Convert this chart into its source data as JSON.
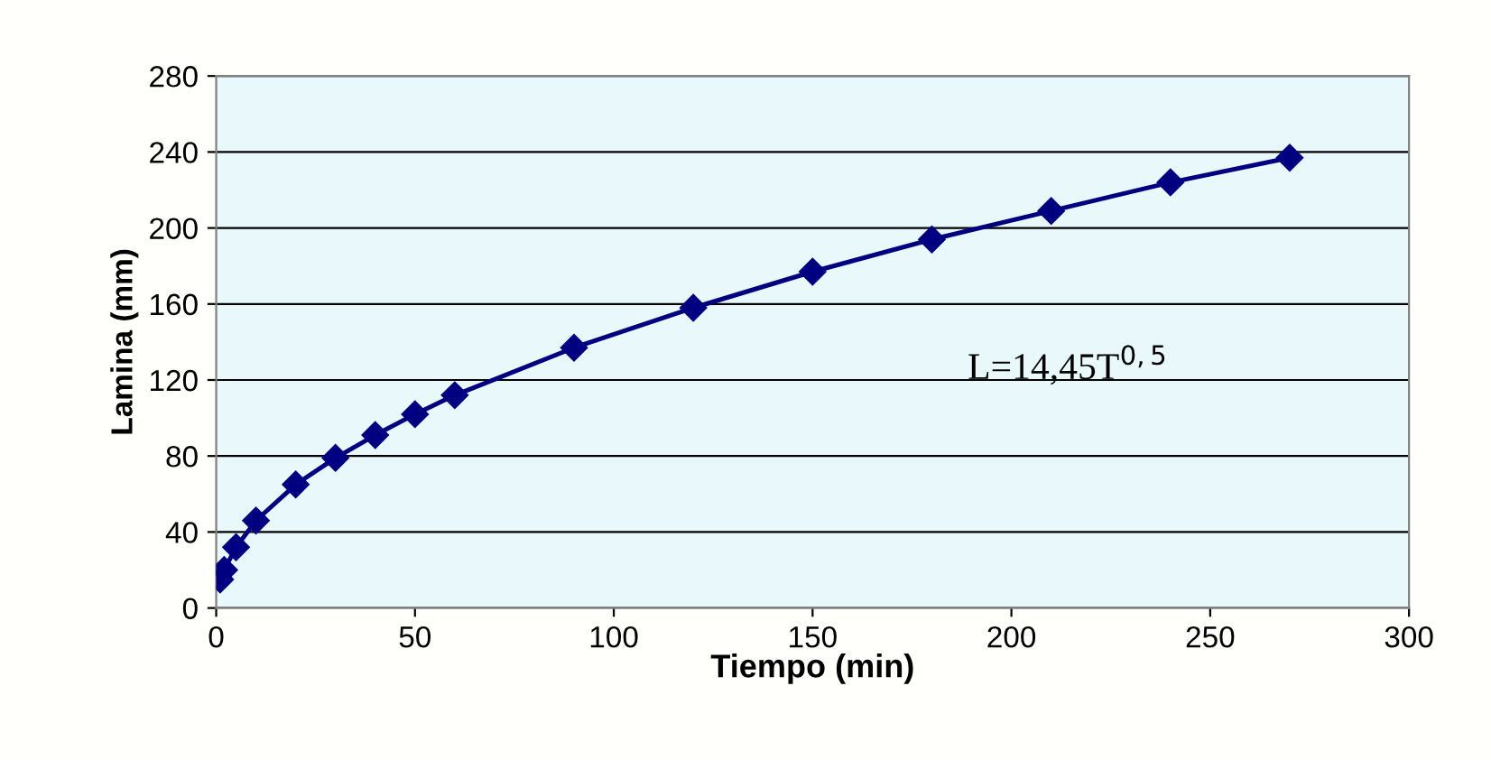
{
  "chart_data": {
    "type": "line",
    "xlabel": "Tiempo (min)",
    "ylabel": "Lamina (mm)",
    "x": [
      1,
      2,
      5,
      10,
      20,
      30,
      40,
      50,
      60,
      90,
      120,
      150,
      180,
      210,
      240,
      270
    ],
    "series": [
      {
        "color": "#000080",
        "values": [
          15,
          20,
          32,
          46,
          65,
          79,
          91,
          102,
          112,
          137,
          158,
          177,
          194,
          209,
          224,
          237
        ]
      }
    ],
    "xlim": [
      0,
      300
    ],
    "xticks": [
      0,
      50,
      100,
      150,
      200,
      250,
      300
    ],
    "ylim": [
      0,
      280
    ],
    "yticks": [
      0,
      40,
      80,
      120,
      160,
      200,
      240,
      280
    ],
    "grid": "y",
    "marker": "diamond",
    "line_style": "solid",
    "annotations": [
      "L=14,45T$^{0,5}$"
    ]
  }
}
